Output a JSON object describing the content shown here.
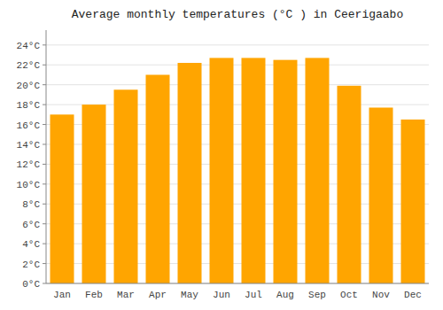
{
  "chart_data": {
    "type": "bar",
    "title": "Average monthly temperatures (°C ) in Ceerigaabo",
    "categories": [
      "Jan",
      "Feb",
      "Mar",
      "Apr",
      "May",
      "Jun",
      "Jul",
      "Aug",
      "Sep",
      "Oct",
      "Nov",
      "Dec"
    ],
    "values": [
      17.0,
      18.0,
      19.5,
      21.0,
      22.2,
      22.7,
      22.7,
      22.5,
      22.7,
      19.9,
      17.7,
      16.5
    ],
    "color": "#FFA500",
    "ylim": [
      0,
      25.5
    ],
    "yticks": [
      {
        "value": 0,
        "label": "0°C"
      },
      {
        "value": 2,
        "label": "2°C"
      },
      {
        "value": 4,
        "label": "4°C"
      },
      {
        "value": 6,
        "label": "6°C"
      },
      {
        "value": 8,
        "label": "8°C"
      },
      {
        "value": 10,
        "label": "10°C"
      },
      {
        "value": 12,
        "label": "12°C"
      },
      {
        "value": 14,
        "label": "14°C"
      },
      {
        "value": 16,
        "label": "16°C"
      },
      {
        "value": 18,
        "label": "18°C"
      },
      {
        "value": 20,
        "label": "20°C"
      },
      {
        "value": 22,
        "label": "22°C"
      },
      {
        "value": 24,
        "label": "24°C"
      }
    ],
    "grid": true
  }
}
